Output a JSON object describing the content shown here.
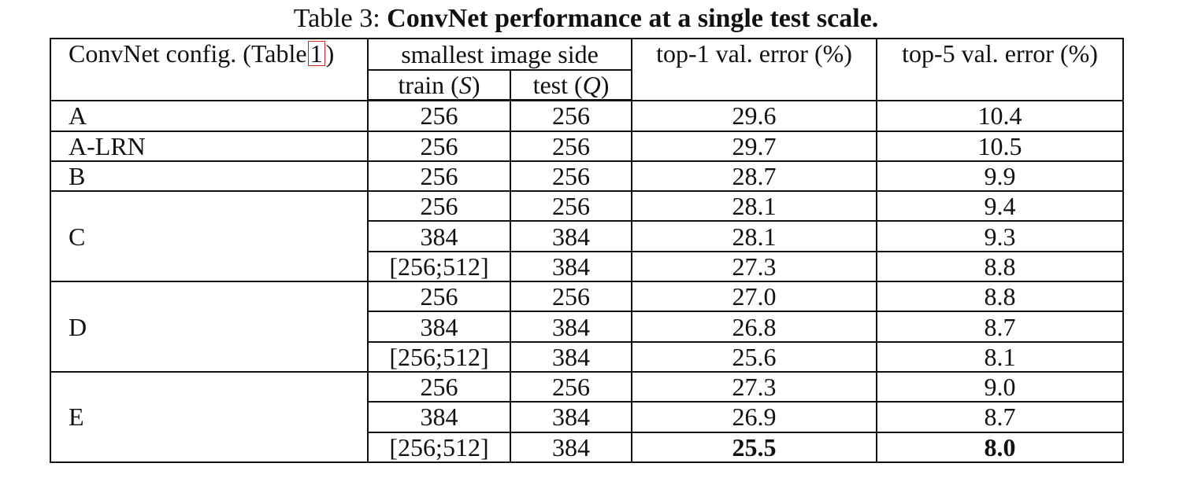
{
  "caption": {
    "label": "Table 3: ",
    "title": "ConvNet performance at a single test scale."
  },
  "header": {
    "config_prefix": "ConvNet config. (Table",
    "config_ref": "1",
    "config_suffix": ")",
    "image_side": "smallest image side",
    "train": "train (",
    "train_sym": "S",
    "test": "test (",
    "test_sym": "Q",
    "close": ")",
    "top1": "top-1 val. error (%)",
    "top5": "top-5 val. error (%)"
  },
  "groups": [
    {
      "config": "A",
      "rows": [
        {
          "train": "256",
          "test": "256",
          "top1": "29.6",
          "top5": "10.4"
        }
      ]
    },
    {
      "config": "A-LRN",
      "rows": [
        {
          "train": "256",
          "test": "256",
          "top1": "29.7",
          "top5": "10.5"
        }
      ]
    },
    {
      "config": "B",
      "rows": [
        {
          "train": "256",
          "test": "256",
          "top1": "28.7",
          "top5": "9.9"
        }
      ]
    },
    {
      "config": "C",
      "rows": [
        {
          "train": "256",
          "test": "256",
          "top1": "28.1",
          "top5": "9.4"
        },
        {
          "train": "384",
          "test": "384",
          "top1": "28.1",
          "top5": "9.3"
        },
        {
          "train": "[256;512]",
          "test": "384",
          "top1": "27.3",
          "top5": "8.8"
        }
      ]
    },
    {
      "config": "D",
      "rows": [
        {
          "train": "256",
          "test": "256",
          "top1": "27.0",
          "top5": "8.8"
        },
        {
          "train": "384",
          "test": "384",
          "top1": "26.8",
          "top5": "8.7"
        },
        {
          "train": "[256;512]",
          "test": "384",
          "top1": "25.6",
          "top5": "8.1"
        }
      ]
    },
    {
      "config": "E",
      "rows": [
        {
          "train": "256",
          "test": "256",
          "top1": "27.3",
          "top5": "9.0"
        },
        {
          "train": "384",
          "test": "384",
          "top1": "26.9",
          "top5": "8.7"
        },
        {
          "train": "[256;512]",
          "test": "384",
          "top1": "25.5",
          "top5": "8.0",
          "best": true
        }
      ]
    }
  ]
}
